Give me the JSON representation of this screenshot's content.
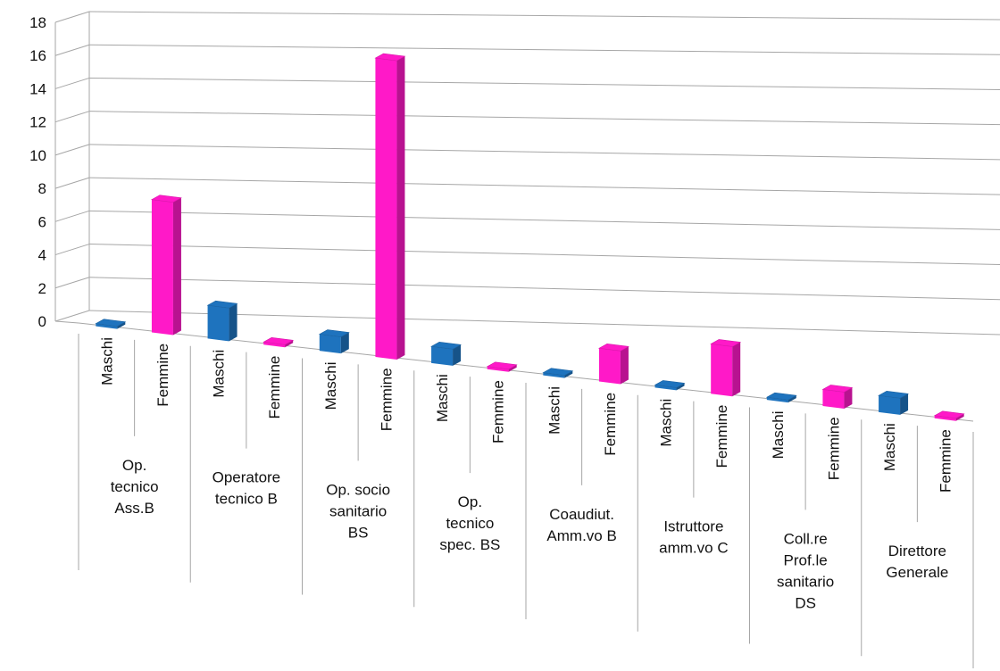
{
  "chart_data": {
    "type": "bar",
    "style": "3d-column",
    "title": "",
    "xlabel": "",
    "ylabel": "",
    "ylim": [
      0,
      18
    ],
    "y_ticks": [
      "0",
      "2",
      "4",
      "6",
      "8",
      "10",
      "12",
      "14",
      "16",
      "18"
    ],
    "grid": true,
    "legend": "none",
    "groups": [
      "Op. tecnico Ass.B",
      "Operatore tecnico B",
      "Op. socio sanitario BS",
      "Op. tecnico spec. BS",
      "Coaudiut. Amm.vo B",
      "Istruttore amm.vo C",
      "Coll.re Prof.le sanitario DS",
      "Direttore Generale"
    ],
    "group_label_lines": [
      [
        "Op.",
        "tecnico",
        "Ass.B"
      ],
      [
        "Operatore",
        "tecnico B"
      ],
      [
        "Op. socio",
        "sanitario",
        "BS"
      ],
      [
        "Op.",
        "tecnico",
        "spec. BS"
      ],
      [
        "Coaudiut.",
        "Amm.vo B"
      ],
      [
        "Istruttore",
        "amm.vo C"
      ],
      [
        "Coll.re",
        "Prof.le",
        "sanitario",
        "DS"
      ],
      [
        "Direttore",
        "Generale"
      ]
    ],
    "sub_categories": [
      "Maschi",
      "Femmine"
    ],
    "values": [
      [
        0,
        8
      ],
      [
        2,
        0
      ],
      [
        1,
        18
      ],
      [
        1,
        0
      ],
      [
        0,
        2
      ],
      [
        0,
        3
      ],
      [
        0,
        1
      ],
      [
        1,
        0
      ]
    ],
    "colors": {
      "Maschi": "#1e73be",
      "Femmine": "#ff19c8"
    }
  }
}
